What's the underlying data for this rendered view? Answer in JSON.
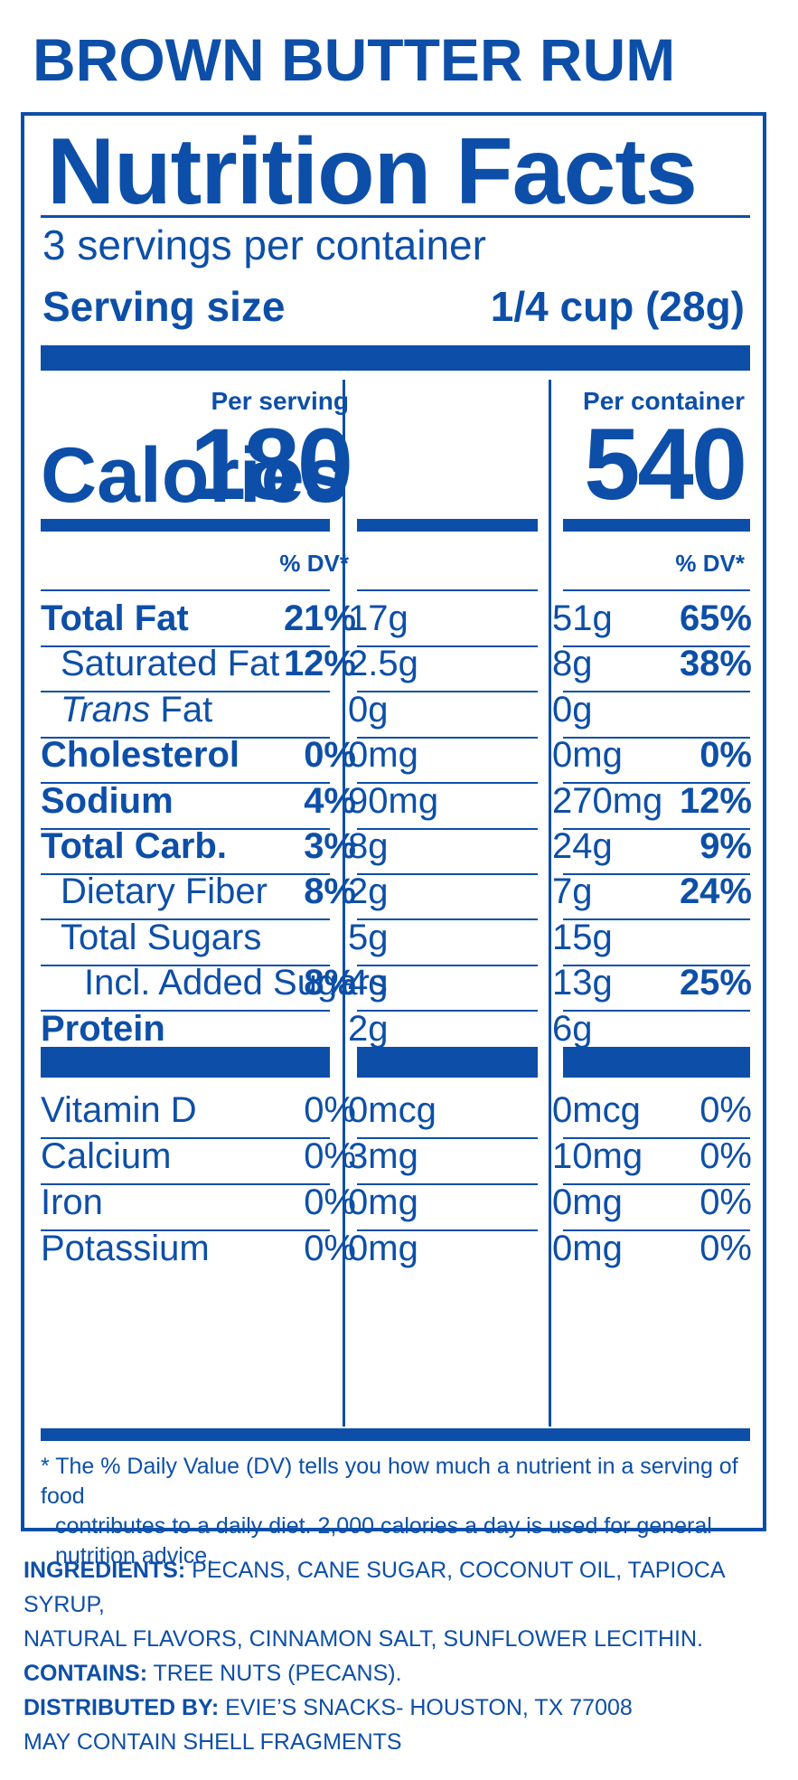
{
  "product": {
    "title": "BROWN BUTTER RUM"
  },
  "label": {
    "title": "Nutrition Facts",
    "servings_per_container": "3 servings per container",
    "serving_size_label": "Serving size",
    "serving_size_value": "1/4 cup (28g)",
    "calories_label": "Calories",
    "columns": [
      {
        "heading": "Per serving",
        "calories": "180",
        "dv_heading": "% DV*"
      },
      {
        "heading": "Per container",
        "calories": "540",
        "dv_heading": "% DV*"
      }
    ],
    "nutrients": [
      {
        "name": "Total Fat",
        "style": "bold",
        "serving_amount": "17g",
        "serving_dv": "21%",
        "container_amount": "51g",
        "container_dv": "65%"
      },
      {
        "name": "Saturated Fat",
        "style": "indent",
        "serving_amount": "2.5g",
        "serving_dv": "12%",
        "container_amount": "8g",
        "container_dv": "38%"
      },
      {
        "name_italic": "Trans",
        "name": " Fat",
        "style": "indent",
        "serving_amount": "0g",
        "serving_dv": "",
        "container_amount": "0g",
        "container_dv": ""
      },
      {
        "name": "Cholesterol",
        "style": "bold",
        "serving_amount": "0mg",
        "serving_dv": "0%",
        "container_amount": "0mg",
        "container_dv": "0%"
      },
      {
        "name": "Sodium",
        "style": "bold",
        "serving_amount": "90mg",
        "serving_dv": "4%",
        "container_amount": "270mg",
        "container_dv": "12%"
      },
      {
        "name": "Total Carb.",
        "style": "bold",
        "serving_amount": "8g",
        "serving_dv": "3%",
        "container_amount": "24g",
        "container_dv": "9%"
      },
      {
        "name": "Dietary Fiber",
        "style": "indent",
        "serving_amount": "2g",
        "serving_dv": "8%",
        "container_amount": "7g",
        "container_dv": "24%"
      },
      {
        "name": "Total Sugars",
        "style": "indent",
        "serving_amount": "5g",
        "serving_dv": "",
        "container_amount": "15g",
        "container_dv": ""
      },
      {
        "name": "Incl. Added Sugars",
        "style": "indent2",
        "serving_amount": "4g",
        "serving_dv": "8%",
        "container_amount": "13g",
        "container_dv": "25%"
      },
      {
        "name": "Protein",
        "style": "bold",
        "serving_amount": "2g",
        "serving_dv": "",
        "container_amount": "6g",
        "container_dv": ""
      }
    ],
    "vitamins": [
      {
        "name": "Vitamin D",
        "serving_amount": "0mcg",
        "serving_dv": "0%",
        "container_amount": "0mcg",
        "container_dv": "0%"
      },
      {
        "name": "Calcium",
        "serving_amount": "3mg",
        "serving_dv": "0%",
        "container_amount": "10mg",
        "container_dv": "0%"
      },
      {
        "name": "Iron",
        "serving_amount": "0mg",
        "serving_dv": "0%",
        "container_amount": "0mg",
        "container_dv": "0%"
      },
      {
        "name": "Potassium",
        "serving_amount": "0mg",
        "serving_dv": "0%",
        "container_amount": "0mg",
        "container_dv": "0%"
      }
    ],
    "footnote_line1": "* The % Daily Value (DV) tells you how much a nutrient in a serving of food",
    "footnote_line2": "contributes to a daily diet. 2,000 calories a day is used for general nutrition advice."
  },
  "ingredients": {
    "ingredients_key": "INGREDIENTS:",
    "ingredients_text_1": "PECANS, CANE SUGAR, COCONUT OIL, TAPIOCA SYRUP,",
    "ingredients_text_2": "NATURAL FLAVORS, CINNAMON SALT, SUNFLOWER LECITHIN.",
    "contains_key": "CONTAINS:",
    "contains_text": "TREE NUTS (PECANS).",
    "distributed_key": "DISTRIBUTED BY:",
    "distributed_text": "EVIE’S SNACKS- HOUSTON, TX 77008",
    "shell_note": "MAY CONTAIN SHELL FRAGMENTS"
  },
  "colors": {
    "label_blue": "#0d4fa8",
    "background": "#ffffff"
  }
}
